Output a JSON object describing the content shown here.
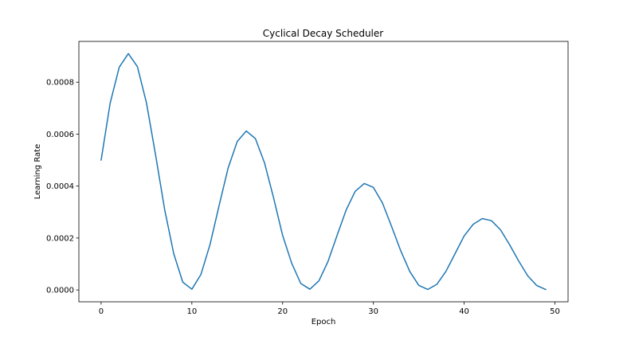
{
  "chart_data": {
    "type": "line",
    "title": "Cyclical Decay Scheduler",
    "xlabel": "Epoch",
    "ylabel": "Learning Rate",
    "xlim": [
      -2.45,
      51.45
    ],
    "ylim": [
      -4.55e-05,
      0.000957
    ],
    "xticks": [
      0,
      10,
      20,
      30,
      40,
      50
    ],
    "xtick_labels": [
      "0",
      "10",
      "20",
      "30",
      "40",
      "50"
    ],
    "yticks": [
      0,
      0.0002,
      0.0004,
      0.0006,
      0.0008
    ],
    "ytick_labels": [
      "0.0000",
      "0.0002",
      "0.0004",
      "0.0006",
      "0.0008"
    ],
    "grid": false,
    "color": "#1f77b4",
    "series": [
      {
        "x": [
          0,
          1,
          2,
          3,
          4,
          5,
          6,
          7,
          8,
          9,
          10,
          11,
          12,
          13,
          14,
          15,
          16,
          17,
          18,
          19,
          20,
          21,
          22,
          23,
          24,
          25,
          26,
          27,
          28,
          29,
          30,
          31,
          32,
          33,
          34,
          35,
          36,
          37,
          38,
          39,
          40,
          41,
          42,
          43,
          44,
          45,
          46,
          47,
          48,
          49
        ],
        "values": [
          0.0005,
          0.00072,
          0.000858,
          0.00091,
          0.00086,
          0.00072,
          0.00052,
          0.00031,
          0.00014,
          3e-05,
          3e-06,
          6e-05,
          0.000175,
          0.000325,
          0.00047,
          0.000572,
          0.000612,
          0.000583,
          0.00049,
          0.000355,
          0.00021,
          0.000103,
          2.5e-05,
          3e-06,
          3.5e-05,
          0.00011,
          0.00021,
          0.000308,
          0.00038,
          0.00041,
          0.000395,
          0.000335,
          0.000245,
          0.000152,
          7.2e-05,
          1.8e-05,
          2e-06,
          2.2e-05,
          7.2e-05,
          0.00014,
          0.000208,
          0.000253,
          0.000275,
          0.000267,
          0.000232,
          0.000175,
          0.000112,
          5.5e-05,
          1.7e-05,
          2e-06
        ]
      }
    ]
  }
}
